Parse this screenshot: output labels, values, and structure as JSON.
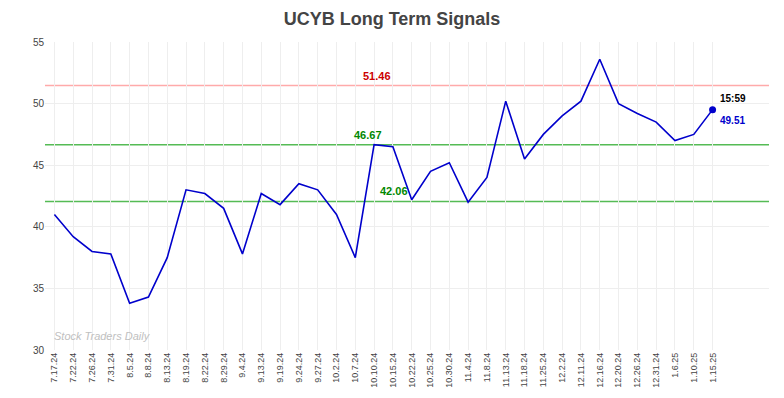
{
  "chart_data": {
    "type": "line",
    "title": "UCYB Long Term Signals",
    "categories": [
      "7.17.24",
      "7.22.24",
      "7.26.24",
      "7.31.24",
      "8.5.24",
      "8.8.24",
      "8.13.24",
      "8.19.24",
      "8.22.24",
      "8.29.24",
      "9.4.24",
      "9.13.24",
      "9.19.24",
      "9.24.24",
      "9.27.24",
      "10.2.24",
      "10.7.24",
      "10.10.24",
      "10.15.24",
      "10.22.24",
      "10.25.24",
      "10.30.24",
      "11.4.24",
      "11.8.24",
      "11.13.24",
      "11.18.24",
      "11.25.24",
      "12.2.24",
      "12.11.24",
      "12.16.24",
      "12.20.24",
      "12.26.24",
      "12.31.24",
      "1.6.25",
      "1.10.25",
      "1.15.25"
    ],
    "values": [
      41.0,
      39.2,
      38.0,
      37.8,
      33.8,
      34.3,
      37.5,
      43.0,
      42.7,
      41.5,
      37.8,
      42.7,
      41.8,
      43.5,
      43.0,
      41.0,
      37.5,
      46.67,
      46.5,
      42.2,
      44.5,
      45.2,
      42.0,
      44.0,
      50.2,
      45.5,
      47.5,
      49.0,
      50.2,
      53.6,
      50.0,
      49.2,
      48.5,
      47.0,
      47.5,
      49.51
    ],
    "color": "#0000cc",
    "ylim": [
      30,
      55
    ],
    "yticks": [
      30,
      35,
      40,
      45,
      50,
      55
    ],
    "grid": true,
    "hlines": [
      {
        "value": 51.46,
        "color": "#ffaaaa",
        "label": "51.46",
        "label_color": "#cc0000",
        "at": "10.7.24"
      },
      {
        "value": 46.67,
        "color": "#55bb55",
        "label": "46.67",
        "label_color": "#008800",
        "at": "10.10.24"
      },
      {
        "value": 42.06,
        "color": "#55bb55",
        "label": "42.06",
        "label_color": "#008800",
        "at": "10.10.24"
      }
    ],
    "end_labels": [
      {
        "text": "15:59",
        "color": "#000000"
      },
      {
        "text": "49.51",
        "color": "#0000cc"
      }
    ],
    "last_point_color": "#0000cc",
    "watermark": {
      "text": "Stock Traders Daily",
      "color": "#c0c0c0"
    }
  }
}
